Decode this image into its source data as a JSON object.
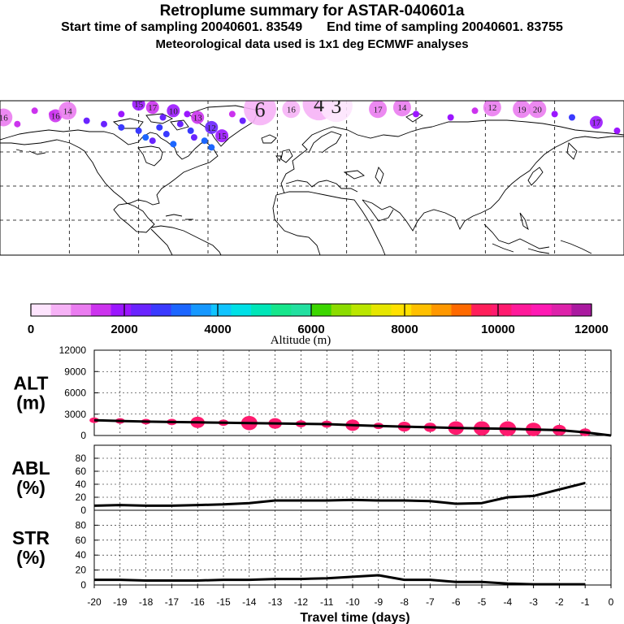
{
  "header": {
    "title": "Retroplume summary for ASTAR-040601a",
    "start_text": "Start time of sampling 20040601. 83549",
    "end_text": "End time of sampling 20040601. 83755",
    "met_text": "Meteorological data used is 1x1 deg ECMWF analyses"
  },
  "map": {
    "plume_labels": [
      {
        "text": "16",
        "lon": -178,
        "lat": 78,
        "alt": 1200
      },
      {
        "text": "16",
        "lon": -148,
        "lat": 79,
        "alt": 1400
      },
      {
        "text": "14",
        "lon": -141,
        "lat": 82,
        "alt": 1000
      },
      {
        "text": "15",
        "lon": -100,
        "lat": 86,
        "alt": 2100
      },
      {
        "text": "17",
        "lon": -92,
        "lat": 84,
        "alt": 1700
      },
      {
        "text": "10",
        "lon": -80,
        "lat": 82,
        "alt": 2000
      },
      {
        "text": "13",
        "lon": -66,
        "lat": 78,
        "alt": 1600
      },
      {
        "text": "12",
        "lon": -58,
        "lat": 72,
        "alt": 2200
      },
      {
        "text": "15",
        "lon": -52,
        "lat": 67,
        "alt": 1900
      },
      {
        "text": "6",
        "lon": -30,
        "lat": 83,
        "alt": 600
      },
      {
        "text": "16",
        "lon": -12,
        "lat": 83,
        "alt": 700
      },
      {
        "text": "4",
        "lon": 4,
        "lat": 86,
        "alt": 500
      },
      {
        "text": "3",
        "lon": 14,
        "lat": 85,
        "alt": 400
      },
      {
        "text": "17",
        "lon": 38,
        "lat": 83,
        "alt": 1000
      },
      {
        "text": "14",
        "lon": 52,
        "lat": 84,
        "alt": 1200
      },
      {
        "text": "12",
        "lon": 104,
        "lat": 84,
        "alt": 1100
      },
      {
        "text": "19",
        "lon": 121,
        "lat": 83,
        "alt": 1000
      },
      {
        "text": "20",
        "lon": 130,
        "lat": 83,
        "alt": 1000
      },
      {
        "text": "17",
        "lon": 164,
        "lat": 75,
        "alt": 2100
      }
    ]
  },
  "colorbar": {
    "tick_labels": [
      "0",
      "2000",
      "4000",
      "6000",
      "8000",
      "10000",
      "12000"
    ],
    "title": "Altitude (m)",
    "colors": [
      "#fde4fd",
      "#f6b2f6",
      "#ea7cf0",
      "#cc33ee",
      "#9b16ff",
      "#6a24ff",
      "#3a3aff",
      "#1c66ff",
      "#1698ff",
      "#10c4ff",
      "#00e0e6",
      "#00e6b8",
      "#16e68c",
      "#22e0a0",
      "#3cd600",
      "#8cdc00",
      "#bae600",
      "#e6e600",
      "#ffe100",
      "#ffc000",
      "#ff9800",
      "#ff6a00",
      "#ff1f5a",
      "#ff1a6e",
      "#ff1a9a",
      "#ff1ab3",
      "#dd22aa",
      "#aa1aa0"
    ]
  },
  "chart_data": [
    {
      "type": "line",
      "name": "ALT",
      "ylabel": [
        "ALT",
        "(m)"
      ],
      "yticks": [
        "12000",
        "9000",
        "6000",
        "3000",
        "0"
      ],
      "ylim": [
        0,
        12000
      ],
      "x": [
        -20,
        -19,
        -18,
        -17,
        -16,
        -15,
        -14,
        -13,
        -12,
        -11,
        -10,
        -9,
        -8,
        -7,
        -6,
        -5,
        -4,
        -3,
        -2,
        -1,
        0
      ],
      "values": [
        2150,
        2050,
        1950,
        1900,
        1850,
        1800,
        1750,
        1700,
        1650,
        1600,
        1450,
        1350,
        1250,
        1150,
        1050,
        1000,
        950,
        850,
        750,
        450,
        0
      ],
      "spread": [
        {
          "x": -20,
          "h": 800
        },
        {
          "x": -19,
          "h": 800
        },
        {
          "x": -18,
          "h": 800
        },
        {
          "x": -17,
          "h": 900
        },
        {
          "x": -16,
          "h": 1600
        },
        {
          "x": -15,
          "h": 900
        },
        {
          "x": -14,
          "h": 2000
        },
        {
          "x": -13,
          "h": 1500
        },
        {
          "x": -12,
          "h": 1000
        },
        {
          "x": -11,
          "h": 1000
        },
        {
          "x": -10,
          "h": 1600
        },
        {
          "x": -9,
          "h": 900
        },
        {
          "x": -8,
          "h": 1400
        },
        {
          "x": -7,
          "h": 1300
        },
        {
          "x": -6,
          "h": 1900
        },
        {
          "x": -5,
          "h": 2000
        },
        {
          "x": -4,
          "h": 2100
        },
        {
          "x": -3,
          "h": 1900
        },
        {
          "x": -2,
          "h": 1500
        },
        {
          "x": -1,
          "h": 1100
        }
      ]
    },
    {
      "type": "line",
      "name": "ABL",
      "ylabel": [
        "ABL",
        "(%)"
      ],
      "yticks": [
        "80",
        "60",
        "40",
        "20",
        "0"
      ],
      "ylim": [
        0,
        100
      ],
      "x": [
        -20,
        -19,
        -18,
        -17,
        -16,
        -15,
        -14,
        -13,
        -12,
        -11,
        -10,
        -9,
        -8,
        -7,
        -6,
        -5,
        -4,
        -3,
        -2,
        -1
      ],
      "values": [
        7,
        8,
        7,
        7,
        8,
        9,
        11,
        15,
        15,
        15,
        16,
        15,
        15,
        14,
        10,
        11,
        20,
        22,
        32,
        42
      ]
    },
    {
      "type": "line",
      "name": "STR",
      "ylabel": [
        "STR",
        "(%)"
      ],
      "yticks": [
        "80",
        "60",
        "40",
        "20",
        "0"
      ],
      "ylim": [
        0,
        100
      ],
      "x": [
        -20,
        -19,
        -18,
        -17,
        -16,
        -15,
        -14,
        -13,
        -12,
        -11,
        -10,
        -9,
        -8,
        -7,
        -6,
        -5,
        -4,
        -3,
        -2,
        -1
      ],
      "values": [
        7,
        7,
        6,
        6,
        6,
        7,
        7,
        8,
        8,
        9,
        11,
        13,
        7,
        7,
        4,
        4,
        2,
        1,
        1,
        1
      ]
    }
  ],
  "xaxis": {
    "label": "Travel time (days)",
    "ticks": [
      "-20",
      "-19",
      "-18",
      "-17",
      "-16",
      "-15",
      "-14",
      "-13",
      "-12",
      "-11",
      "-10",
      "-9",
      "-8",
      "-7",
      "-6",
      "-5",
      "-4",
      "-3",
      "-2",
      "-1",
      "0"
    ]
  }
}
